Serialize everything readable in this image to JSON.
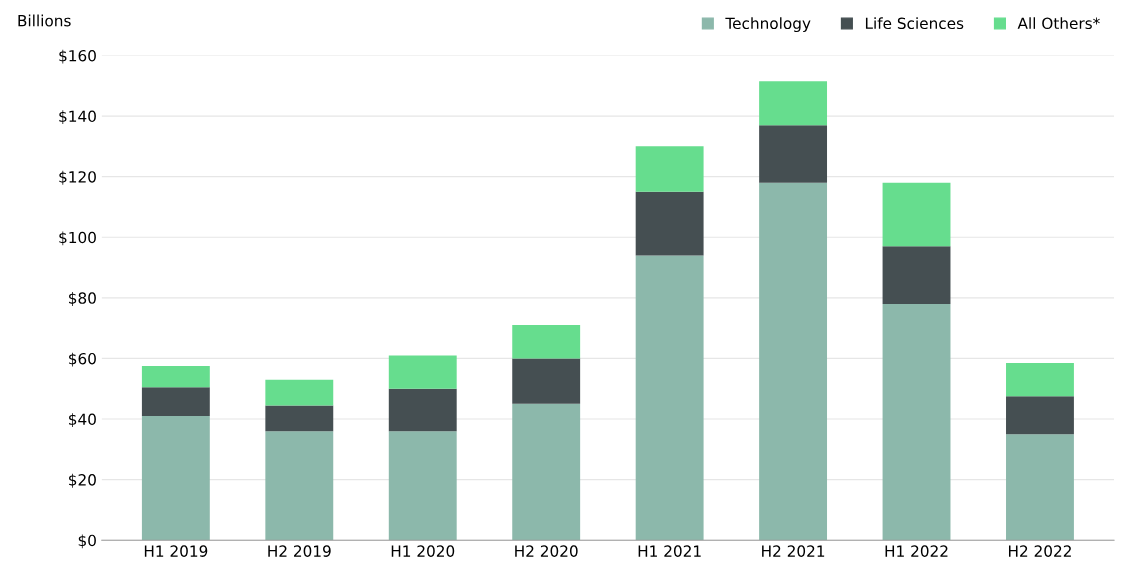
{
  "chart_data": {
    "type": "bar",
    "stacked": true,
    "ylabel": "Billions",
    "categories": [
      "H1 2019",
      "H2 2019",
      "H1 2020",
      "H2 2020",
      "H1 2021",
      "H2 2021",
      "H1 2022",
      "H2 2022"
    ],
    "series": [
      {
        "name": "Technology",
        "color": "#8cb8ab",
        "values": [
          41,
          36,
          36,
          45,
          94,
          118,
          78,
          35
        ]
      },
      {
        "name": "Life Sciences",
        "color": "#454f52",
        "values": [
          9.5,
          8.5,
          14,
          15,
          21,
          19,
          19,
          12.5
        ]
      },
      {
        "name": "All Others*",
        "color": "#66dd8e",
        "values": [
          7,
          8.5,
          11,
          11,
          15,
          14.5,
          21,
          11
        ]
      }
    ],
    "ylim": [
      0,
      160
    ],
    "yticks": [
      {
        "value": 0,
        "label": "$0"
      },
      {
        "value": 20,
        "label": "$20"
      },
      {
        "value": 40,
        "label": "$40"
      },
      {
        "value": 60,
        "label": "$60"
      },
      {
        "value": 80,
        "label": "$80"
      },
      {
        "value": 100,
        "label": "$100"
      },
      {
        "value": 120,
        "label": "$120"
      },
      {
        "value": 140,
        "label": "$140"
      },
      {
        "value": 160,
        "label": "$160"
      }
    ],
    "grid": "y",
    "legend": "top right"
  }
}
